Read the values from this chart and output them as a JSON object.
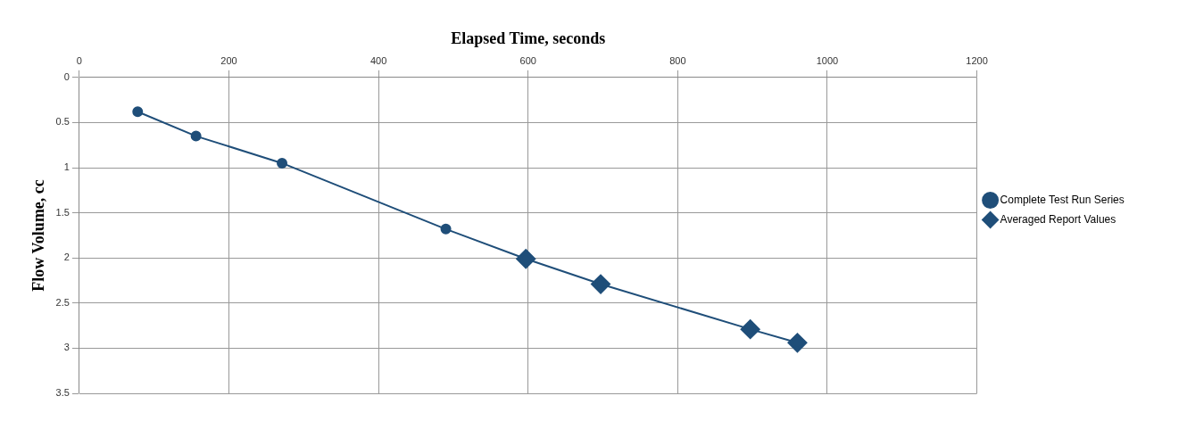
{
  "chart_data": {
    "type": "line",
    "xlabel": "Elapsed Time, seconds",
    "ylabel": "Flow Volume, cc",
    "xlim": [
      0,
      1200
    ],
    "xticks": [
      0,
      200,
      400,
      600,
      800,
      1000,
      1200
    ],
    "ylim": [
      3.5,
      0
    ],
    "yticks": [
      0,
      0.5,
      1,
      1.5,
      2,
      2.5,
      3,
      3.5
    ],
    "grid": true,
    "legend": "right",
    "series": [
      {
        "name": "Averaged Report Values",
        "type": "scatter",
        "marker": "diamond",
        "color": "#1f4e79",
        "x": [
          597,
          697,
          897,
          960
        ],
        "values": [
          2.01,
          2.29,
          2.79,
          2.94
        ]
      },
      {
        "name": "Complete Test Run Series",
        "type": "line",
        "marker": "circle",
        "line_style": "solid",
        "color": "#1f4e79",
        "x": [
          78,
          156,
          271,
          490,
          597,
          697,
          897,
          960
        ],
        "values": [
          0.38,
          0.65,
          0.95,
          1.68,
          2.01,
          2.29,
          2.79,
          2.94
        ]
      }
    ]
  }
}
